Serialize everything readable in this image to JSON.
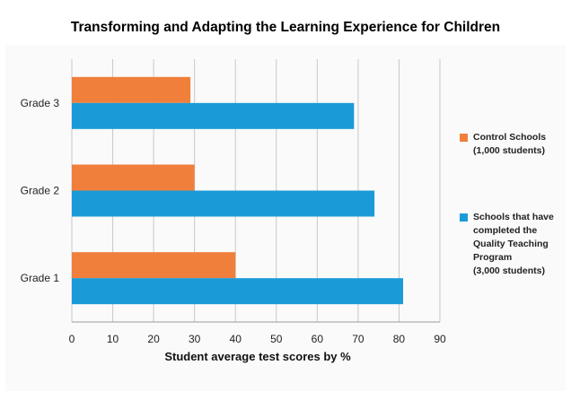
{
  "chart_data": {
    "type": "bar",
    "orientation": "horizontal",
    "title": "Transforming and Adapting the Learning Experience for Children",
    "xlabel": "Student average test scores by %",
    "ylabel": "",
    "categories": [
      "Grade 3",
      "Grade 2",
      "Grade 1"
    ],
    "xlim": [
      0,
      90
    ],
    "xticks": [
      "0",
      "10",
      "20",
      "30",
      "40",
      "50",
      "60",
      "70",
      "80",
      "90"
    ],
    "grid": true,
    "legend_position": "right",
    "series": [
      {
        "name": "Control Schools\n(1,000 students)",
        "color": "#f07f3c",
        "values": [
          29,
          30,
          40
        ]
      },
      {
        "name": "Schools that have\ncompleted the\nQuality Teaching\nProgram\n(3,000 students)",
        "color": "#1a9bd7",
        "values": [
          69,
          74,
          81
        ]
      }
    ]
  }
}
